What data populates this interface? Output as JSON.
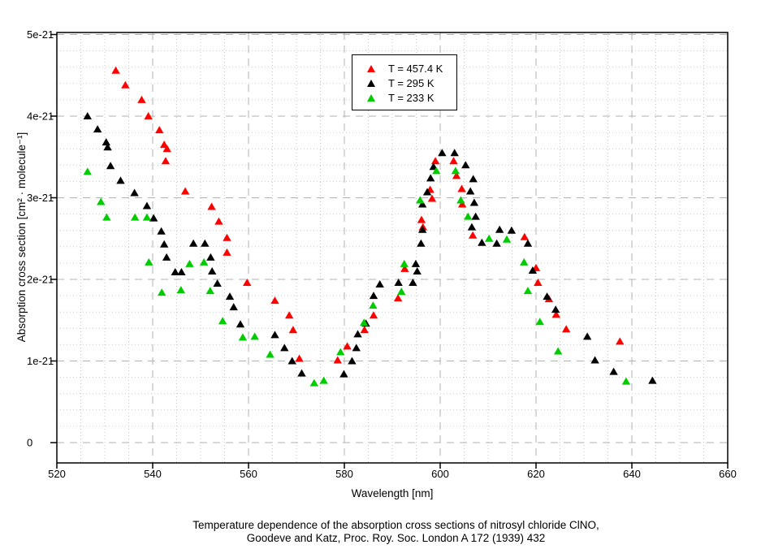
{
  "caption": {
    "line1": "Temperature dependence of the absorption cross sections of nitrosyl chloride ClNO,",
    "line2": "Goodeve and Katz, Proc. Roy. Soc. London A 172 (1939) 432"
  },
  "chart_data": {
    "type": "scatter",
    "marker": "filled-triangle-up",
    "title": "",
    "xlabel": "Wavelength [nm]",
    "ylabel": "Absorption cross section [cm² · molecule⁻¹]",
    "xlim": [
      520,
      660
    ],
    "ylim_e21": [
      0,
      5
    ],
    "x_ticks": [
      520,
      540,
      560,
      580,
      600,
      620,
      640,
      660
    ],
    "y_ticks": [
      "0",
      "1e-21",
      "2e-21",
      "3e-21",
      "4e-21",
      "5e-21"
    ],
    "x_minor_step": 5,
    "y_minor_step_e21": 0.2,
    "grid": "major dashed gray, minor dotted light gray",
    "legend_position": "top-center",
    "y_unit": "values in 1e-21 cm2/molecule",
    "series": [
      {
        "name": "T = 457.4 K",
        "color": "#ff0000",
        "points": [
          [
            532.3,
            4.56
          ],
          [
            534.3,
            4.38
          ],
          [
            537.7,
            4.2
          ],
          [
            539.1,
            4.0
          ],
          [
            541.4,
            3.83
          ],
          [
            542.4,
            3.65
          ],
          [
            543.0,
            3.6
          ],
          [
            542.7,
            3.45
          ],
          [
            546.8,
            3.08
          ],
          [
            552.3,
            2.89
          ],
          [
            553.8,
            2.71
          ],
          [
            555.5,
            2.51
          ],
          [
            555.5,
            2.33
          ],
          [
            559.7,
            1.96
          ],
          [
            565.5,
            1.74
          ],
          [
            568.5,
            1.56
          ],
          [
            569.3,
            1.38
          ],
          [
            570.6,
            1.03
          ],
          [
            578.6,
            1.01
          ],
          [
            580.6,
            1.18
          ],
          [
            584.2,
            1.38
          ],
          [
            586.1,
            1.56
          ],
          [
            591.2,
            1.77
          ],
          [
            592.6,
            2.13
          ],
          [
            596.1,
            2.73
          ],
          [
            596.4,
            2.64
          ],
          [
            597.9,
            3.1
          ],
          [
            598.3,
            2.99
          ],
          [
            599.0,
            3.45
          ],
          [
            602.8,
            3.45
          ],
          [
            603.4,
            3.27
          ],
          [
            604.5,
            3.11
          ],
          [
            604.6,
            2.92
          ],
          [
            606.8,
            2.54
          ],
          [
            617.6,
            2.52
          ],
          [
            620.0,
            2.14
          ],
          [
            620.4,
            1.96
          ],
          [
            622.7,
            1.76
          ],
          [
            624.2,
            1.57
          ],
          [
            626.3,
            1.39
          ],
          [
            637.5,
            1.24
          ]
        ]
      },
      {
        "name": "T = 295 K",
        "color": "#000000",
        "points": [
          [
            526.4,
            4.0
          ],
          [
            528.5,
            3.84
          ],
          [
            530.3,
            3.68
          ],
          [
            530.6,
            3.62
          ],
          [
            531.2,
            3.39
          ],
          [
            533.3,
            3.21
          ],
          [
            536.2,
            3.06
          ],
          [
            538.8,
            2.9
          ],
          [
            540.2,
            2.75
          ],
          [
            541.8,
            2.59
          ],
          [
            542.4,
            2.43
          ],
          [
            542.9,
            2.27
          ],
          [
            544.7,
            2.09
          ],
          [
            546.0,
            2.09
          ],
          [
            548.5,
            2.44
          ],
          [
            550.9,
            2.44
          ],
          [
            552.1,
            2.27
          ],
          [
            552.4,
            2.1
          ],
          [
            553.5,
            1.95
          ],
          [
            556.1,
            1.79
          ],
          [
            556.9,
            1.66
          ],
          [
            558.3,
            1.45
          ],
          [
            565.5,
            1.32
          ],
          [
            567.5,
            1.16
          ],
          [
            569.1,
            1.0
          ],
          [
            571.1,
            0.85
          ],
          [
            579.9,
            0.84
          ],
          [
            581.6,
            1.0
          ],
          [
            582.5,
            1.16
          ],
          [
            582.8,
            1.33
          ],
          [
            584.5,
            1.46
          ],
          [
            586.1,
            1.8
          ],
          [
            587.4,
            1.94
          ],
          [
            591.3,
            1.96
          ],
          [
            594.3,
            1.96
          ],
          [
            594.9,
            2.19
          ],
          [
            595.2,
            2.1
          ],
          [
            596.0,
            2.44
          ],
          [
            596.3,
            2.61
          ],
          [
            596.3,
            2.92
          ],
          [
            597.3,
            3.07
          ],
          [
            598.0,
            3.24
          ],
          [
            598.6,
            3.38
          ],
          [
            600.4,
            3.55
          ],
          [
            603.0,
            3.55
          ],
          [
            605.3,
            3.4
          ],
          [
            606.9,
            3.23
          ],
          [
            606.3,
            3.08
          ],
          [
            607.1,
            2.94
          ],
          [
            607.4,
            2.77
          ],
          [
            606.6,
            2.64
          ],
          [
            608.7,
            2.45
          ],
          [
            611.8,
            2.44
          ],
          [
            612.4,
            2.61
          ],
          [
            614.9,
            2.6
          ],
          [
            618.3,
            2.44
          ],
          [
            619.3,
            2.11
          ],
          [
            622.3,
            1.79
          ],
          [
            624.1,
            1.63
          ],
          [
            630.7,
            1.3
          ],
          [
            632.3,
            1.01
          ],
          [
            636.2,
            0.87
          ],
          [
            644.3,
            0.76
          ]
        ]
      },
      {
        "name": "T = 233 K",
        "color": "#00cc00",
        "points": [
          [
            526.4,
            3.32
          ],
          [
            529.2,
            2.95
          ],
          [
            530.4,
            2.76
          ],
          [
            536.3,
            2.76
          ],
          [
            538.8,
            2.76
          ],
          [
            539.2,
            2.21
          ],
          [
            541.9,
            1.84
          ],
          [
            545.9,
            1.87
          ],
          [
            547.7,
            2.19
          ],
          [
            550.7,
            2.21
          ],
          [
            552.0,
            1.86
          ],
          [
            554.6,
            1.49
          ],
          [
            558.8,
            1.29
          ],
          [
            561.3,
            1.3
          ],
          [
            564.5,
            1.08
          ],
          [
            573.7,
            0.73
          ],
          [
            575.7,
            0.76
          ],
          [
            579.2,
            1.11
          ],
          [
            584.1,
            1.47
          ],
          [
            586.0,
            1.68
          ],
          [
            591.9,
            1.85
          ],
          [
            592.5,
            2.19
          ],
          [
            595.8,
            2.97
          ],
          [
            599.2,
            3.33
          ],
          [
            603.2,
            3.33
          ],
          [
            604.3,
            2.97
          ],
          [
            605.8,
            2.77
          ],
          [
            610.2,
            2.5
          ],
          [
            613.9,
            2.49
          ],
          [
            617.5,
            2.21
          ],
          [
            618.3,
            1.86
          ],
          [
            620.8,
            1.48
          ],
          [
            624.6,
            1.12
          ],
          [
            638.8,
            0.75
          ]
        ]
      }
    ]
  }
}
